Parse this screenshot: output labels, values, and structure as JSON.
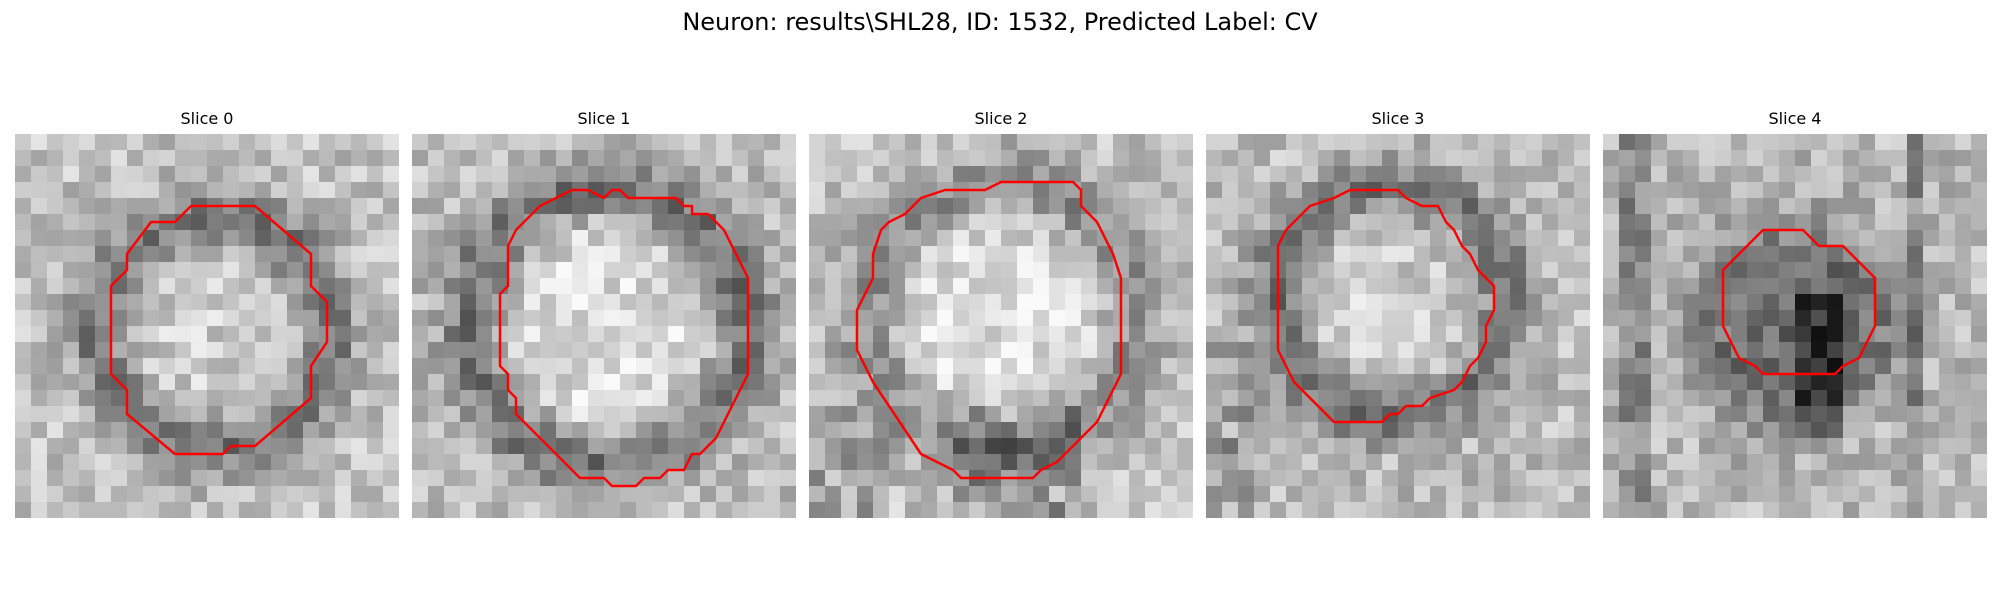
{
  "figure": {
    "title": "Neuron: results\\SHL28, ID: 1532, Predicted Label: CV",
    "outline_color": "#ff0000"
  },
  "panels": [
    {
      "title": "Slice 0"
    },
    {
      "title": "Slice 1"
    },
    {
      "title": "Slice 2"
    },
    {
      "title": "Slice 3"
    },
    {
      "title": "Slice 4"
    }
  ]
}
